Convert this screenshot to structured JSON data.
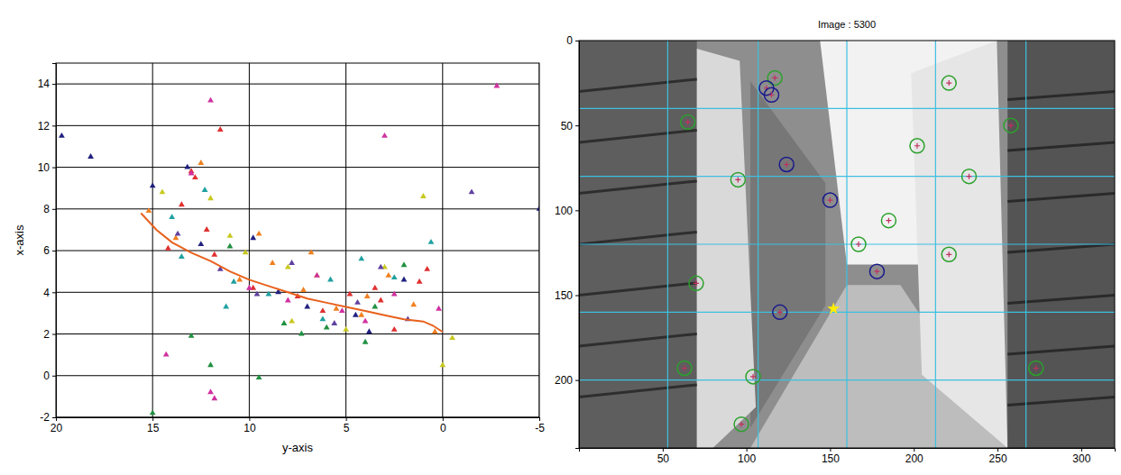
{
  "chart_data": [
    {
      "type": "scatter",
      "xlabel": "y-axis",
      "ylabel": "x-axis",
      "xlim": [
        20,
        -5
      ],
      "ylim": [
        -2,
        15
      ],
      "xticks": [
        20,
        15,
        10,
        5,
        0,
        -5
      ],
      "yticks": [
        -2,
        0,
        2,
        4,
        6,
        8,
        10,
        12,
        14
      ],
      "grid": true,
      "series": [
        {
          "color": "#e03030",
          "marker": "triangle",
          "x": [
            13.5,
            12.8,
            12.2,
            11.5,
            14.2,
            9.8,
            7.5,
            6.2,
            4.8,
            3.5,
            3.2,
            2.5,
            1.2,
            0.8,
            13,
            11.8
          ],
          "values": [
            8.2,
            9.5,
            7,
            11.8,
            6.1,
            4.2,
            3.8,
            3.1,
            3.9,
            4.2,
            3.6,
            2.2,
            4.5,
            5.1,
            9.8,
            5.8
          ]
        },
        {
          "color": "#f08020",
          "marker": "triangle",
          "x": [
            15.2,
            13.8,
            12.5,
            10.5,
            8.8,
            7.2,
            5.5,
            4.2,
            2.8,
            1.5,
            0.4,
            9.5,
            6.8,
            3.9
          ],
          "values": [
            7.9,
            6.6,
            10.2,
            4.6,
            5.4,
            4.1,
            3.2,
            2.9,
            4.8,
            3.4,
            2.1,
            6.8,
            5.9,
            3.8
          ]
        },
        {
          "color": "#c8c820",
          "marker": "triangle",
          "x": [
            14.5,
            12,
            10.2,
            8,
            6.5,
            5,
            3,
            1,
            0,
            -0.5,
            11,
            7.8
          ],
          "values": [
            8.8,
            8.5,
            5.9,
            5.2,
            4.8,
            2.2,
            5.2,
            8.6,
            0.5,
            1.8,
            6.7,
            2.6
          ]
        },
        {
          "color": "#202080",
          "marker": "triangle",
          "x": [
            19.7,
            18.2,
            15,
            13.2,
            9.8,
            7,
            4.5,
            3.8,
            2,
            12.5,
            8.5,
            -5
          ],
          "values": [
            11.5,
            10.5,
            9.1,
            10,
            6.6,
            3.3,
            2.9,
            2.1,
            4.6,
            6.3,
            4,
            8
          ]
        },
        {
          "color": "#20a0a0",
          "marker": "triangle",
          "x": [
            14,
            12.3,
            10.8,
            9,
            6.2,
            4.2,
            2.5,
            0.6,
            13.5,
            11.2,
            5.8
          ],
          "values": [
            7.6,
            8.9,
            4.5,
            3.9,
            2.7,
            5.6,
            4.7,
            6.4,
            5.7,
            3.3,
            4.6
          ]
        },
        {
          "color": "#209040",
          "marker": "triangle",
          "x": [
            15,
            13,
            11,
            9.5,
            8.2,
            6,
            3.5,
            2,
            12,
            7.3,
            4
          ],
          "values": [
            -1.8,
            1.9,
            6.2,
            -0.1,
            2.5,
            2.3,
            3.3,
            5.3,
            0.5,
            2,
            1.6
          ]
        },
        {
          "color": "#d030a0",
          "marker": "triangle",
          "x": [
            14.3,
            13,
            12,
            10,
            8,
            6.5,
            5.2,
            4,
            2.5,
            0.2,
            -2.8,
            12,
            11.8,
            3
          ],
          "values": [
            1,
            9.7,
            13.2,
            4.2,
            3.6,
            4.8,
            3.1,
            2.6,
            3.9,
            3.2,
            13.9,
            -0.8,
            -1.1,
            11.5
          ]
        },
        {
          "color": "#6040a0",
          "marker": "triangle",
          "x": [
            13.7,
            11.5,
            9.6,
            7.8,
            5.6,
            4.4,
            3.2,
            1.8,
            -1.5
          ],
          "values": [
            6.8,
            5.1,
            3.9,
            5.4,
            2.5,
            3.5,
            5.2,
            2.7,
            8.8
          ]
        },
        {
          "type": "line",
          "color": "#e8601c",
          "line_style": "solid",
          "x": [
            15.6,
            14.8,
            14,
            13,
            12,
            11,
            10,
            9,
            8,
            7,
            6,
            5,
            4,
            3,
            2,
            1,
            0.5,
            0
          ],
          "values": [
            7.8,
            7,
            6.4,
            5.9,
            5.5,
            5,
            4.6,
            4.3,
            4,
            3.7,
            3.5,
            3.3,
            3.1,
            2.9,
            2.7,
            2.6,
            2.4,
            2.1
          ]
        }
      ]
    },
    {
      "type": "scatter",
      "title": "Image : 5300",
      "xlim": [
        0,
        320
      ],
      "ylim": [
        240,
        0
      ],
      "xticks": [
        50,
        100,
        150,
        200,
        250,
        300
      ],
      "yticks": [
        0,
        50,
        100,
        150,
        200
      ],
      "grid": false,
      "guide_lines": {
        "color": "#3cc0e0",
        "x": [
          53,
          107,
          160,
          213,
          267
        ],
        "y": [
          40,
          80,
          120,
          160,
          200
        ]
      },
      "series": [
        {
          "color": "#2ca02c",
          "marker": "circle",
          "x": [
            117,
            221,
            65,
            258,
            202,
            233,
            95,
            185,
            167,
            221,
            70,
            63,
            104,
            273,
            97
          ],
          "values": [
            22,
            25,
            48,
            50,
            62,
            80,
            82,
            106,
            120,
            126,
            143,
            193,
            198,
            193,
            226
          ]
        },
        {
          "color": "#1a1a8c",
          "marker": "circle",
          "x": [
            112,
            115,
            124,
            150,
            178,
            120
          ],
          "values": [
            28,
            32,
            73,
            94,
            136,
            160
          ]
        },
        {
          "color": "#ffee00",
          "marker": "star",
          "x": [
            152
          ],
          "values": [
            158
          ]
        }
      ]
    }
  ]
}
